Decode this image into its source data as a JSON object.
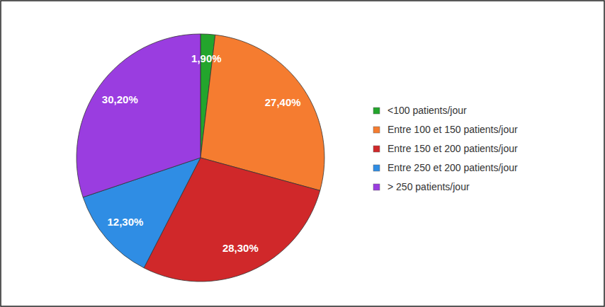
{
  "chart_data": {
    "type": "pie",
    "categories": [
      "<100 patients/jour",
      "Entre 100 et 150 patients/jour",
      "Entre 150 et 200 patients/jour",
      "Entre 250 et 200 patients/jour",
      "> 250 patients/jour"
    ],
    "values": [
      1.9,
      27.4,
      28.3,
      12.3,
      30.2
    ],
    "value_labels": [
      "1,90%",
      "27,40%",
      "28,30%",
      "12,30%",
      "30,20%"
    ],
    "colors": [
      "#23a52c",
      "#f57c30",
      "#d0282a",
      "#2f8de4",
      "#9a3de0"
    ],
    "data_labels": true,
    "legend": "right"
  }
}
